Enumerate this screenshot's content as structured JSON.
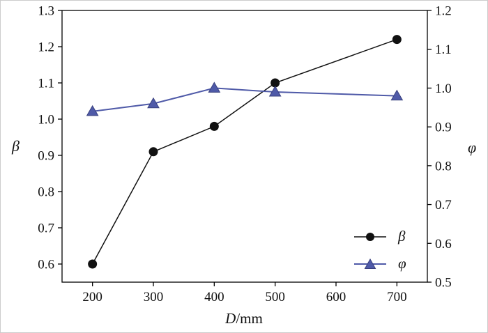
{
  "figure": {
    "background": "#ffffff",
    "border_color": "#cccccc",
    "axis_color": "#000000",
    "tick_label_color": "#111111"
  },
  "chart_data": {
    "type": "line",
    "title": "",
    "x": [
      200,
      300,
      400,
      500,
      700
    ],
    "series": [
      {
        "name": "beta",
        "label": "β",
        "axis": "left",
        "color": "#111111",
        "edge_color": "#111111",
        "marker": "circle",
        "values": [
          0.6,
          0.91,
          0.98,
          1.1,
          1.22
        ]
      },
      {
        "name": "phi",
        "label": "φ",
        "axis": "right",
        "color": "#4f5aa8",
        "edge_color": "#39407e",
        "marker": "triangle",
        "values": [
          0.94,
          0.96,
          1.0,
          0.99,
          0.98
        ]
      }
    ],
    "xlabel_var": "D",
    "xlabel_unit": "/mm",
    "ylabel_left": "β",
    "ylabel_right": "φ",
    "xlim": [
      150,
      750
    ],
    "xticks": [
      "200",
      "300",
      "400",
      "500",
      "600",
      "700"
    ],
    "ylim_left": [
      0.55,
      1.3
    ],
    "yticks_left": [
      "0.6",
      "0.7",
      "0.8",
      "0.9",
      "1.0",
      "1.1",
      "1.2",
      "1.3"
    ],
    "ylim_right": [
      0.5,
      1.2
    ],
    "yticks_right": [
      "0.5",
      "0.6",
      "0.7",
      "0.8",
      "0.9",
      "1.0",
      "1.1",
      "1.2"
    ],
    "grid": false,
    "legend_position": "lower right"
  }
}
